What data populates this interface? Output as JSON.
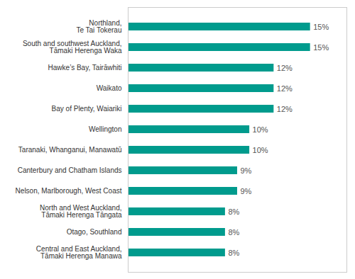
{
  "chart_data": {
    "type": "bar",
    "orientation": "horizontal",
    "categories": [
      "Central and East Auckland,\nTāmaki Herenga Manawa",
      "Otago, Southland",
      "North and West Auckland,\nTāmaki Herenga Tāngata",
      "Nelson, Marlborough, West Coast",
      "Canterbury and Chatham Islands",
      "Taranaki, Whanganui, Manawatū",
      "Wellington",
      "Bay of Plenty, Waiariki",
      "Waikato",
      "Hawke’s Bay, Tairāwhiti",
      "South and southwest Auckland,\nTāmaki Herenga Waka",
      "Northland,\nTe Tai Tokerau"
    ],
    "values": [
      8,
      8,
      8,
      9,
      9,
      10,
      10,
      12,
      12,
      12,
      15,
      15
    ],
    "value_labels": [
      "8%",
      "8%",
      "8%",
      "9%",
      "9%",
      "10%",
      "10%",
      "12%",
      "12%",
      "12%",
      "15%",
      "15%"
    ],
    "color": "#009B8D",
    "xlim": [
      0,
      18
    ],
    "data_labels": true,
    "tick_labels": "y"
  }
}
